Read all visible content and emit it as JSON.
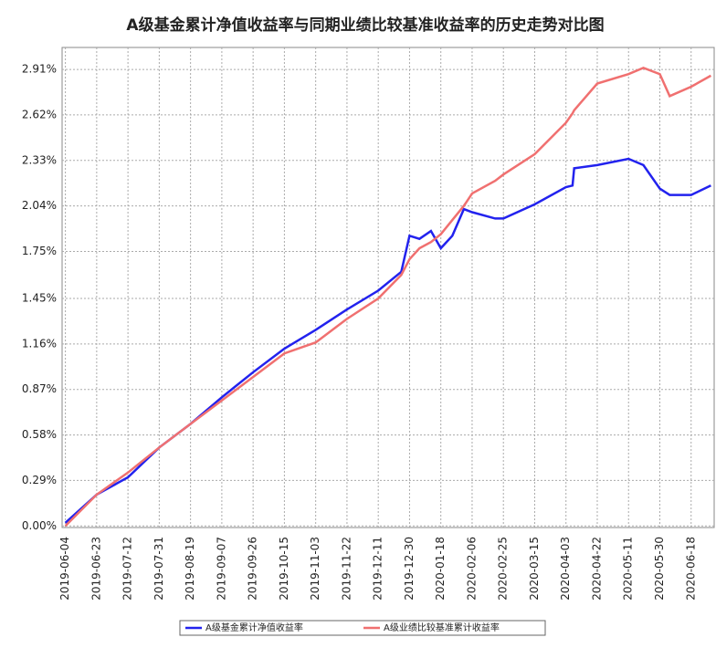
{
  "chart_data": {
    "type": "line",
    "title": "A级基金累计净值收益率与同期业绩比较基准收益率的历史走势对比图",
    "x": [
      "2019-06-04",
      "2019-06-23",
      "2019-07-12",
      "2019-07-31",
      "2019-08-19",
      "2019-09-07",
      "2019-09-26",
      "2019-10-15",
      "2019-11-03",
      "2019-11-22",
      "2019-12-11",
      "2019-12-25",
      "2019-12-30",
      "2020-01-05",
      "2020-01-12",
      "2020-01-18",
      "2020-01-25",
      "2020-02-01",
      "2020-02-06",
      "2020-02-20",
      "2020-02-25",
      "2020-03-15",
      "2020-04-03",
      "2020-04-07",
      "2020-04-08",
      "2020-04-22",
      "2020-05-11",
      "2020-05-20",
      "2020-05-30",
      "2020-06-05",
      "2020-06-18",
      "2020-06-30"
    ],
    "series": [
      {
        "name": "A级基金累计净值收益率",
        "color": "#2222ee",
        "values": [
          0.02,
          0.2,
          0.31,
          0.5,
          0.65,
          0.82,
          0.98,
          1.13,
          1.25,
          1.38,
          1.5,
          1.62,
          1.85,
          1.83,
          1.88,
          1.77,
          1.85,
          2.02,
          2.0,
          1.96,
          1.96,
          2.05,
          2.16,
          2.17,
          2.28,
          2.3,
          2.34,
          2.3,
          2.15,
          2.11,
          2.11,
          2.17
        ]
      },
      {
        "name": "A级业绩比较基准累计收益率",
        "color": "#f07070",
        "values": [
          0.0,
          0.2,
          0.34,
          0.5,
          0.65,
          0.8,
          0.95,
          1.1,
          1.17,
          1.32,
          1.45,
          1.6,
          1.7,
          1.77,
          1.81,
          1.86,
          1.95,
          2.04,
          2.12,
          2.2,
          2.24,
          2.37,
          2.57,
          2.63,
          2.65,
          2.82,
          2.88,
          2.92,
          2.88,
          2.74,
          2.8,
          2.87
        ]
      }
    ],
    "xlim": [
      "2019-06-02",
      "2020-07-02"
    ],
    "xticks": [
      "2019-06-04",
      "2019-06-23",
      "2019-07-12",
      "2019-07-31",
      "2019-08-19",
      "2019-09-07",
      "2019-09-26",
      "2019-10-15",
      "2019-11-03",
      "2019-11-22",
      "2019-12-11",
      "2019-12-30",
      "2020-01-18",
      "2020-02-06",
      "2020-02-25",
      "2020-03-15",
      "2020-04-03",
      "2020-04-22",
      "2020-05-11",
      "2020-05-30",
      "2020-06-18"
    ],
    "ylim": [
      -0.01,
      3.05
    ],
    "yticks": [
      {
        "value": 0,
        "label": "0.00%"
      },
      {
        "value": 0.29,
        "label": "0.29%"
      },
      {
        "value": 0.58,
        "label": "0.58%"
      },
      {
        "value": 0.87,
        "label": "0.87%"
      },
      {
        "value": 1.16,
        "label": "1.16%"
      },
      {
        "value": 1.45,
        "label": "1.45%"
      },
      {
        "value": 1.75,
        "label": "1.75%"
      },
      {
        "value": 2.04,
        "label": "2.04%"
      },
      {
        "value": 2.33,
        "label": "2.33%"
      },
      {
        "value": 2.62,
        "label": "2.62%"
      },
      {
        "value": 2.91,
        "label": "2.91%"
      }
    ],
    "grid": true,
    "legend": "bottom"
  }
}
